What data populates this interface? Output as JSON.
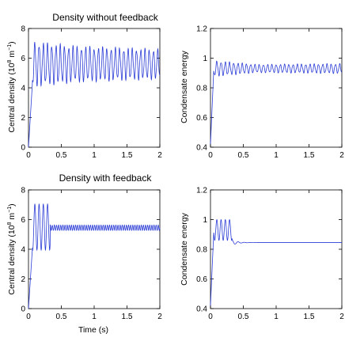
{
  "chart_data": [
    {
      "type": "line",
      "title": "Density without feedback",
      "xlabel": "",
      "ylabel": "Central density (10",
      "ylabel_exp": "8",
      "ylabel_unit": " m",
      "ylabel_unit_exp": "−1",
      "ylabel_close": ")",
      "xlim": [
        0,
        2
      ],
      "ylim": [
        0,
        8
      ],
      "xticks": [
        "0",
        "0.5",
        "1",
        "1.5",
        "2"
      ],
      "yticks": [
        "0",
        "2",
        "4",
        "6",
        "8"
      ],
      "series": [
        {
          "model": "oscillation",
          "rise_end": 0.06,
          "start": 0.0,
          "mean": 5.6,
          "amplitude": [
            1.4,
            1.1,
            0.9
          ],
          "freq_hz": 15.5,
          "values_summary": "sustained oscillation between about 4.3 and 7.0"
        }
      ]
    },
    {
      "type": "line",
      "title": "",
      "xlabel": "",
      "ylabel": "Condensate energy",
      "xlim": [
        0,
        2
      ],
      "ylim": [
        0.4,
        1.2
      ],
      "xticks": [
        "0",
        "0.5",
        "1",
        "1.5",
        "2"
      ],
      "yticks": [
        "0.4",
        "0.6",
        "0.8",
        "1",
        "1.2"
      ],
      "series": [
        {
          "model": "oscillation",
          "rise_end": 0.05,
          "start": 0.42,
          "mean": 0.93,
          "amplitude": [
            0.05,
            0.025,
            0.03
          ],
          "freq_hz": 15.5,
          "values_summary": "oscillation around 0.93 decaying slightly then growing toward t=2"
        }
      ]
    },
    {
      "type": "line",
      "title": "Density with feedback",
      "xlabel": "Time (s)",
      "ylabel": "Central density (10",
      "ylabel_exp": "8",
      "ylabel_unit": " m",
      "ylabel_unit_exp": "−1",
      "ylabel_close": ")",
      "xlim": [
        0,
        2
      ],
      "ylim": [
        0,
        8
      ],
      "xticks": [
        "0",
        "0.5",
        "1",
        "1.5",
        "2"
      ],
      "yticks": [
        "0",
        "2",
        "4",
        "6",
        "8"
      ],
      "series": [
        {
          "model": "damped",
          "rise_end": 0.06,
          "start": 0.0,
          "mean_before": 5.5,
          "amp_before": 1.55,
          "switch_time": 0.33,
          "mean_after": 5.45,
          "amp_after": 0.18,
          "freq_hz": 15.5,
          "values_summary": "large oscillation until ~0.33 s then settles near 5.5 with small ripple"
        }
      ]
    },
    {
      "type": "line",
      "title": "",
      "xlabel": "",
      "ylabel": "Condensate energy",
      "xlim": [
        0,
        2
      ],
      "ylim": [
        0.4,
        1.2
      ],
      "xticks": [
        "0",
        "0.5",
        "1",
        "1.5",
        "2"
      ],
      "yticks": [
        "0.4",
        "0.6",
        "0.8",
        "1",
        "1.2"
      ],
      "series": [
        {
          "model": "damped",
          "rise_end": 0.05,
          "start": 0.42,
          "mean_before": 0.93,
          "amp_before": 0.07,
          "switch_time": 0.33,
          "mean_after": 0.845,
          "amp_after": 0.0,
          "freq_hz": 15.5,
          "values_summary": "oscillates until ~0.33 s then decays to a flat ~0.845"
        }
      ]
    }
  ]
}
